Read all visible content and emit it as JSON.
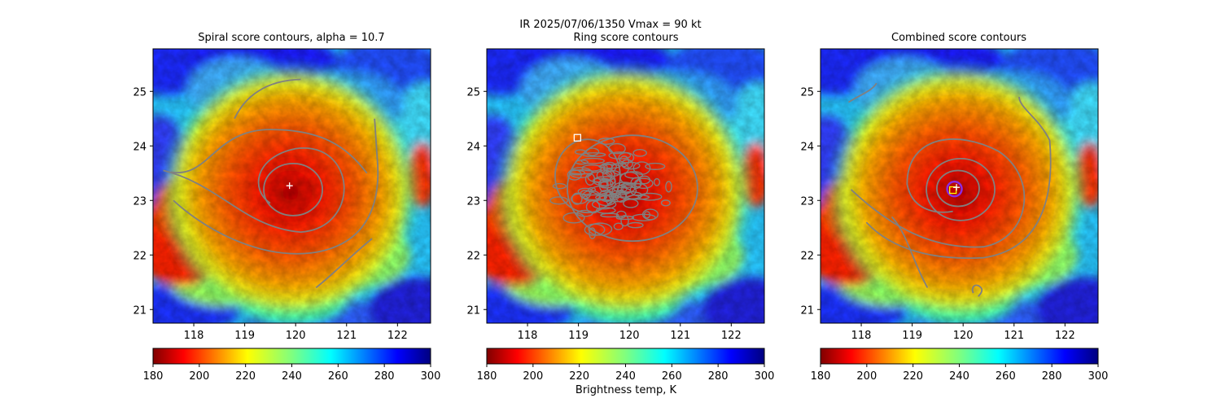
{
  "figure": {
    "suptitle": "IR  2025/07/06/1350    Vmax = 90 kt",
    "colorbar_label": "Brightness temp, K",
    "colormap": "jet"
  },
  "chart_data": [
    {
      "type": "heatmap",
      "title": "Spiral score contours, alpha = 10.7",
      "xlabel": "",
      "ylabel": "",
      "xlim": [
        117.2,
        122.65
      ],
      "ylim": [
        20.75,
        25.78
      ],
      "xticks": [
        118,
        119,
        120,
        121,
        122
      ],
      "yticks": [
        21,
        22,
        23,
        24,
        25
      ],
      "z_range": [
        180,
        300
      ],
      "colorbar_ticks": [
        180,
        200,
        220,
        240,
        260,
        280,
        300
      ],
      "contour_color": "#808080",
      "center_marker": {
        "x": 119.88,
        "y": 23.27,
        "symbol": "+",
        "color": "#ffffff"
      }
    },
    {
      "type": "heatmap",
      "title": "Ring score contours",
      "xlabel": "",
      "ylabel": "",
      "xlim": [
        117.2,
        122.65
      ],
      "ylim": [
        20.75,
        25.78
      ],
      "xticks": [
        118,
        119,
        120,
        121,
        122
      ],
      "yticks": [
        21,
        22,
        23,
        24,
        25
      ],
      "z_range": [
        180,
        300
      ],
      "colorbar_ticks": [
        180,
        200,
        220,
        240,
        260,
        280,
        300
      ],
      "contour_color": "#808080",
      "square_marker": {
        "x": 118.98,
        "y": 24.15,
        "color": "#ffffff"
      }
    },
    {
      "type": "heatmap",
      "title": "Combined score contours",
      "xlabel": "",
      "ylabel": "",
      "xlim": [
        117.2,
        122.65
      ],
      "ylim": [
        20.75,
        25.78
      ],
      "xticks": [
        118,
        119,
        120,
        121,
        122
      ],
      "yticks": [
        21,
        22,
        23,
        24,
        25
      ],
      "z_range": [
        180,
        300
      ],
      "colorbar_ticks": [
        180,
        200,
        220,
        240,
        260,
        280,
        300
      ],
      "contour_color": "#808080",
      "center_marker": {
        "x": 119.87,
        "y": 23.24,
        "symbol": "+",
        "color": "#ffffff"
      },
      "square_marker": {
        "x": 119.8,
        "y": 23.19,
        "color": "#ffff00"
      },
      "circle_marker": {
        "x": 119.83,
        "y": 23.21,
        "color": "#8a2be2"
      }
    }
  ]
}
